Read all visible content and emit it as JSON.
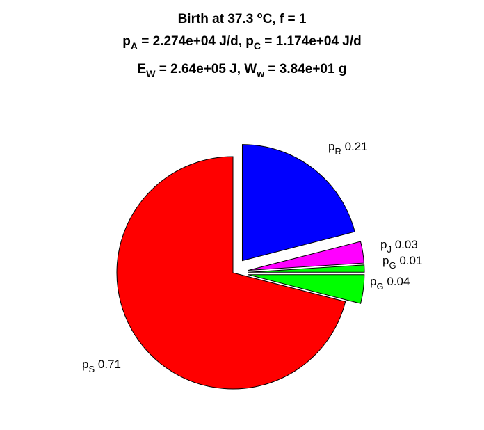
{
  "chart_data": {
    "type": "pie",
    "title": {
      "line1": {
        "pre": "Birth at 37.3 ",
        "sup": "o",
        "post": "C, f = 1"
      },
      "line2": {
        "a_base": "p",
        "a_sub": "A",
        "a_val": " = 2.274e+04 J/d, ",
        "c_base": "p",
        "c_sub": "C",
        "c_val": " = 1.174e+04 J/d"
      },
      "line3": {
        "e_base": "E",
        "e_sub": "W",
        "e_val": " = 2.64e+05 J, ",
        "w_base": "W",
        "w_sub": "w",
        "w_val": " = 3.84e+01 g"
      }
    },
    "slices": [
      {
        "base": "p",
        "sub": "R",
        "value": 0.21,
        "value_label": "0.21",
        "color": "#0000ff",
        "exploded": true
      },
      {
        "base": "p",
        "sub": "J",
        "value": 0.03,
        "value_label": "0.03",
        "color": "#ff00ff",
        "exploded": true
      },
      {
        "base": "p",
        "sub": "G",
        "value": 0.01,
        "value_label": "0.01",
        "color": "#00ff00",
        "exploded": true
      },
      {
        "base": "p",
        "sub": "G",
        "value": 0.04,
        "value_label": "0.04",
        "color": "#00ff00",
        "exploded": true
      },
      {
        "base": "p",
        "sub": "S",
        "value": 0.71,
        "value_label": "0.71",
        "color": "#ff0000",
        "exploded": false
      }
    ]
  }
}
